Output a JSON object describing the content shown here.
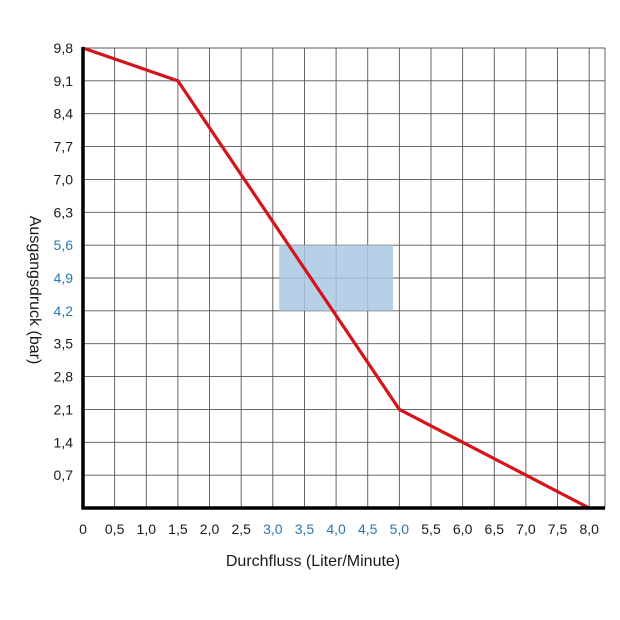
{
  "chart_data": {
    "type": "line",
    "xlabel": "Durchfluss (Liter/Minute)",
    "ylabel": "Ausgangsdruck (bar)",
    "xlim": [
      0,
      8.25
    ],
    "ylim": [
      0,
      9.8
    ],
    "x_ticks": [
      0,
      0.5,
      1.0,
      1.5,
      2.0,
      2.5,
      3.0,
      3.5,
      4.0,
      4.5,
      5.0,
      5.5,
      6.0,
      6.5,
      7.0,
      7.5,
      8.0
    ],
    "x_tick_labels": [
      "0",
      "0,5",
      "1,0",
      "1,5",
      "2,0",
      "2,5",
      "3,0",
      "3,5",
      "4,0",
      "4,5",
      "5,0",
      "5,5",
      "6,0",
      "6,5",
      "7,0",
      "7,5",
      "8,0"
    ],
    "x_highlight_labels": [
      "3,0",
      "3,5",
      "4,0",
      "4,5",
      "5,0"
    ],
    "y_ticks": [
      0.7,
      1.4,
      2.1,
      2.8,
      3.5,
      4.2,
      4.9,
      5.6,
      6.3,
      7.0,
      7.7,
      8.4,
      9.1,
      9.8
    ],
    "y_tick_labels": [
      "0,7",
      "1,4",
      "2,1",
      "2,8",
      "3,5",
      "4,2",
      "4,9",
      "5,6",
      "6,3",
      "7,0",
      "7,7",
      "8,4",
      "9,1",
      "9,8"
    ],
    "y_highlight_labels": [
      "4,2",
      "4,9",
      "5,6"
    ],
    "grid": true,
    "series": [
      {
        "x": [
          0,
          1.5,
          5.0,
          8.0
        ],
        "y": [
          9.8,
          9.1,
          2.1,
          0
        ],
        "color": "#d4141c"
      }
    ],
    "highlight_region": {
      "x": [
        3.1,
        4.9
      ],
      "y": [
        4.2,
        5.6
      ],
      "color": "#a9c9e3"
    },
    "colors": {
      "tick": "#1a1a1a",
      "tick_highlight": "#2a7ab0",
      "grid": "#555555",
      "axis": "#000000"
    }
  }
}
